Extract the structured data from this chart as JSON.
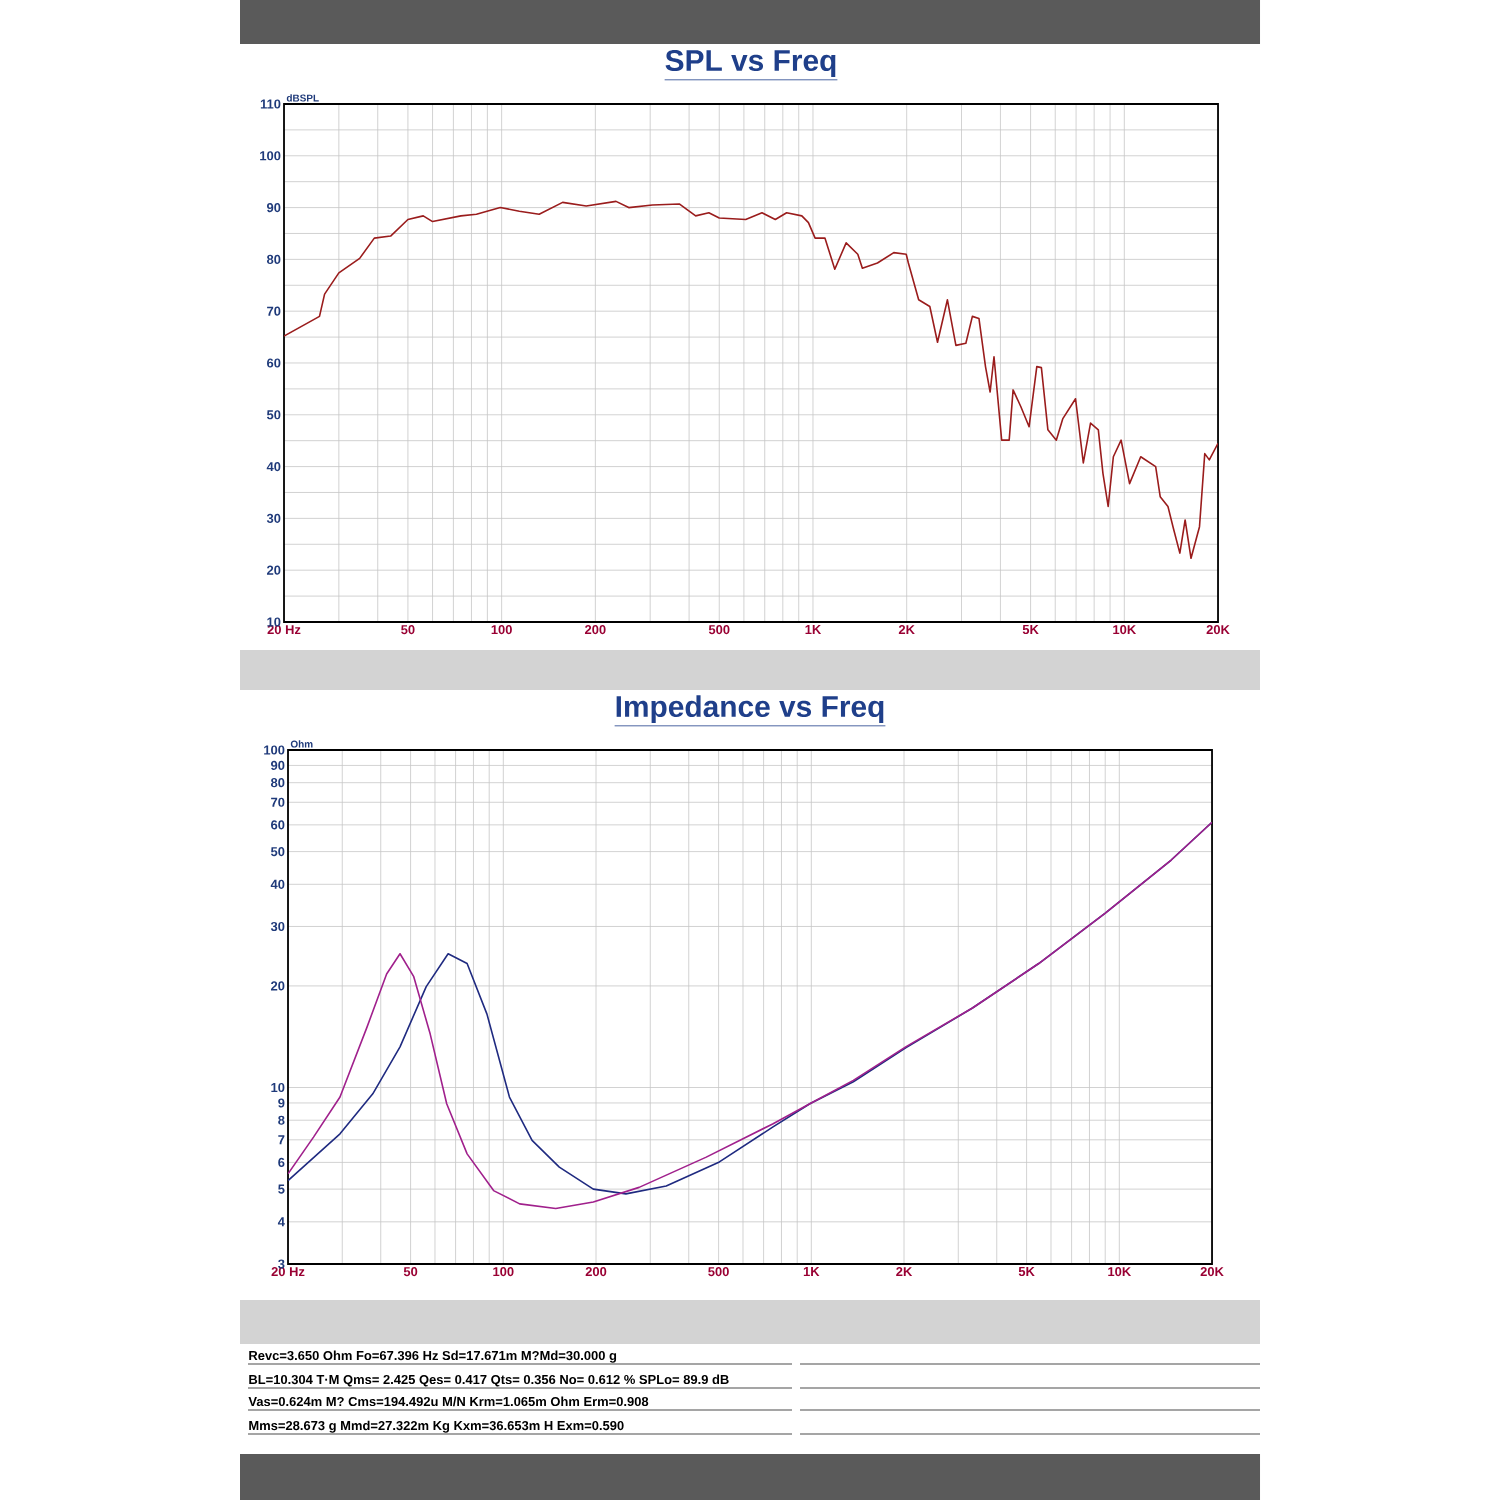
{
  "chart_data": [
    {
      "type": "line",
      "title": "SPL vs Freq",
      "ylabel": "dBSPL",
      "log": "x",
      "grid": true,
      "xlim": [
        20,
        20000
      ],
      "ylim": [
        10,
        110
      ],
      "xticks": [
        {
          "value": 20,
          "label": "20 Hz"
        },
        {
          "value": 30,
          "label": null
        },
        {
          "value": 40,
          "label": null
        },
        50,
        {
          "value": 60,
          "label": null
        },
        {
          "value": 70,
          "label": null
        },
        {
          "value": 80,
          "label": null
        },
        {
          "value": 90,
          "label": null
        },
        100,
        200,
        {
          "value": 300,
          "label": null
        },
        {
          "value": 400,
          "label": null
        },
        500,
        {
          "value": 600,
          "label": null
        },
        {
          "value": 700,
          "label": null
        },
        {
          "value": 800,
          "label": null
        },
        {
          "value": 900,
          "label": null
        },
        {
          "value": 1000,
          "label": "1K"
        },
        {
          "value": 2000,
          "label": "2K"
        },
        {
          "value": 3000,
          "label": null
        },
        {
          "value": 4000,
          "label": null
        },
        {
          "value": 5000,
          "label": "5K"
        },
        {
          "value": 6000,
          "label": null
        },
        {
          "value": 7000,
          "label": null
        },
        {
          "value": 8000,
          "label": null
        },
        {
          "value": 9000,
          "label": null
        },
        {
          "value": 10000,
          "label": "10K"
        },
        {
          "value": 20000,
          "label": "20K"
        }
      ],
      "yticks": [
        10,
        {
          "value": 15,
          "label": null
        },
        20,
        {
          "value": 25,
          "label": null
        },
        30,
        {
          "value": 35,
          "label": null
        },
        40,
        {
          "value": 45,
          "label": null
        },
        50,
        {
          "value": 55,
          "label": null
        },
        60,
        {
          "value": 65,
          "label": null
        },
        70,
        {
          "value": 75,
          "label": null
        },
        80,
        {
          "value": 85,
          "label": null
        },
        90,
        {
          "value": 95,
          "label": null
        },
        100,
        {
          "value": 105,
          "label": null
        },
        110
      ],
      "series": [
        {
          "color": "#9a1c1c",
          "x": [
            20,
            26,
            27,
            30,
            35,
            39,
            44,
            50,
            56,
            60,
            74,
            83,
            99,
            114,
            132,
            157,
            187,
            233,
            256,
            305,
            372,
            420,
            463,
            500,
            608,
            686,
            757,
            823,
            921,
            967,
            1016,
            1093,
            1175,
            1278,
            1393,
            1441,
            1611,
            1818,
            1993,
            2025,
            2185,
            2373,
            2512,
            2703,
            2878,
            3098,
            3251,
            3413,
            3582,
            3707,
            3815,
            4037,
            4268,
            4393,
            4650,
            4945,
            5235,
            5416,
            5683,
            6047,
            6340,
            6972,
            7385,
            7790,
            8252,
            8538,
            8874,
            9222,
            9766,
            10396,
            11290,
            12610,
            13040,
            13810,
            14360,
            15080,
            15680,
            16380,
            17440,
            18130,
            18750,
            20000
          ],
          "values": [
            65.2,
            69.0,
            73.3,
            77.4,
            80.2,
            84.1,
            84.5,
            87.7,
            88.4,
            87.3,
            88.4,
            88.7,
            90.0,
            89.3,
            88.7,
            91.0,
            90.3,
            91.2,
            90.0,
            90.5,
            90.7,
            88.4,
            89.0,
            88.0,
            87.7,
            89.0,
            87.7,
            89.0,
            88.4,
            87.1,
            84.1,
            84.1,
            78.1,
            83.2,
            81.0,
            78.3,
            79.3,
            81.3,
            81.0,
            79.3,
            72.2,
            70.9,
            64.0,
            72.2,
            63.4,
            63.8,
            69.0,
            68.6,
            59.3,
            54.4,
            61.2,
            45.1,
            45.1,
            54.8,
            51.6,
            47.7,
            59.3,
            59.1,
            47.1,
            45.1,
            49.2,
            53.1,
            40.7,
            48.4,
            47.1,
            38.7,
            32.3,
            41.9,
            45.1,
            36.7,
            41.9,
            40.0,
            34.2,
            32.3,
            28.2,
            23.3,
            29.7,
            22.3,
            28.4,
            42.5,
            41.3,
            44.5
          ]
        }
      ]
    },
    {
      "type": "line",
      "title": "Impedance vs Freq",
      "ylabel": "Ohm",
      "log": "xy",
      "grid": true,
      "xlim": [
        20,
        20000
      ],
      "ylim": [
        3,
        100
      ],
      "xticks": [
        {
          "value": 20,
          "label": "20 Hz"
        },
        {
          "value": 30,
          "label": null
        },
        {
          "value": 40,
          "label": null
        },
        50,
        {
          "value": 60,
          "label": null
        },
        {
          "value": 70,
          "label": null
        },
        {
          "value": 80,
          "label": null
        },
        {
          "value": 90,
          "label": null
        },
        100,
        200,
        {
          "value": 300,
          "label": null
        },
        {
          "value": 400,
          "label": null
        },
        500,
        {
          "value": 600,
          "label": null
        },
        {
          "value": 700,
          "label": null
        },
        {
          "value": 800,
          "label": null
        },
        {
          "value": 900,
          "label": null
        },
        {
          "value": 1000,
          "label": "1K"
        },
        {
          "value": 2000,
          "label": "2K"
        },
        {
          "value": 3000,
          "label": null
        },
        {
          "value": 4000,
          "label": null
        },
        {
          "value": 5000,
          "label": "5K"
        },
        {
          "value": 6000,
          "label": null
        },
        {
          "value": 7000,
          "label": null
        },
        {
          "value": 8000,
          "label": null
        },
        {
          "value": 9000,
          "label": null
        },
        {
          "value": 10000,
          "label": "10K"
        },
        {
          "value": 20000,
          "label": "20K"
        }
      ],
      "yticks": [
        3,
        4,
        5,
        6,
        7,
        8,
        9,
        10,
        20,
        30,
        40,
        50,
        60,
        70,
        80,
        90,
        100
      ],
      "series": [
        {
          "color": "#1f2a80",
          "x": [
            20,
            29.5,
            37.7,
            46.2,
            56.2,
            66.2,
            76.3,
            88.5,
            104.7,
            124,
            152,
            196,
            250,
            338,
            503,
            749,
            989,
            1369,
            2025,
            3336,
            5474,
            8983,
            14740,
            20000
          ],
          "values": [
            5.3,
            7.29,
            9.58,
            13.2,
            19.9,
            24.9,
            23.3,
            16.5,
            9.37,
            6.97,
            5.81,
            5.0,
            4.84,
            5.11,
            6.02,
            7.63,
            8.95,
            10.4,
            13.1,
            17.2,
            23.3,
            32.8,
            47.2,
            61.1
          ]
        },
        {
          "color": "#a0208c",
          "x": [
            20,
            24.2,
            29.5,
            36.1,
            41.8,
            46.2,
            51.2,
            57.9,
            65.5,
            76.3,
            93,
            113,
            148,
            196,
            276,
            456,
            749,
            989,
            1369,
            2025,
            3336,
            5474,
            8983,
            14740,
            20000
          ],
          "values": [
            5.55,
            7.13,
            9.37,
            15.1,
            21.7,
            24.9,
            21.3,
            14.4,
            8.95,
            6.36,
            4.95,
            4.52,
            4.38,
            4.58,
            5.06,
            6.22,
            7.8,
            8.95,
            10.5,
            13.2,
            17.2,
            23.3,
            32.8,
            47.2,
            61.1
          ]
        }
      ]
    },
    {
      "type": "other",
      "annotations": [
        "Revc=3.650 Ohm  Fo=67.396 Hz  Sd=17.671m M?Md=30.000 g",
        "BL=10.304 T·M  Qms= 2.425  Qes= 0.417  Qts= 0.356  No= 0.612 %  SPLo= 89.9 dB",
        "Vas=0.624m M? Cms=194.492u M/N  Krm=1.065m Ohm  Erm=0.908",
        "Mms=28.673 g  Mmd=27.322m Kg  Kxm=36.653m H  Exm=0.590"
      ]
    }
  ]
}
